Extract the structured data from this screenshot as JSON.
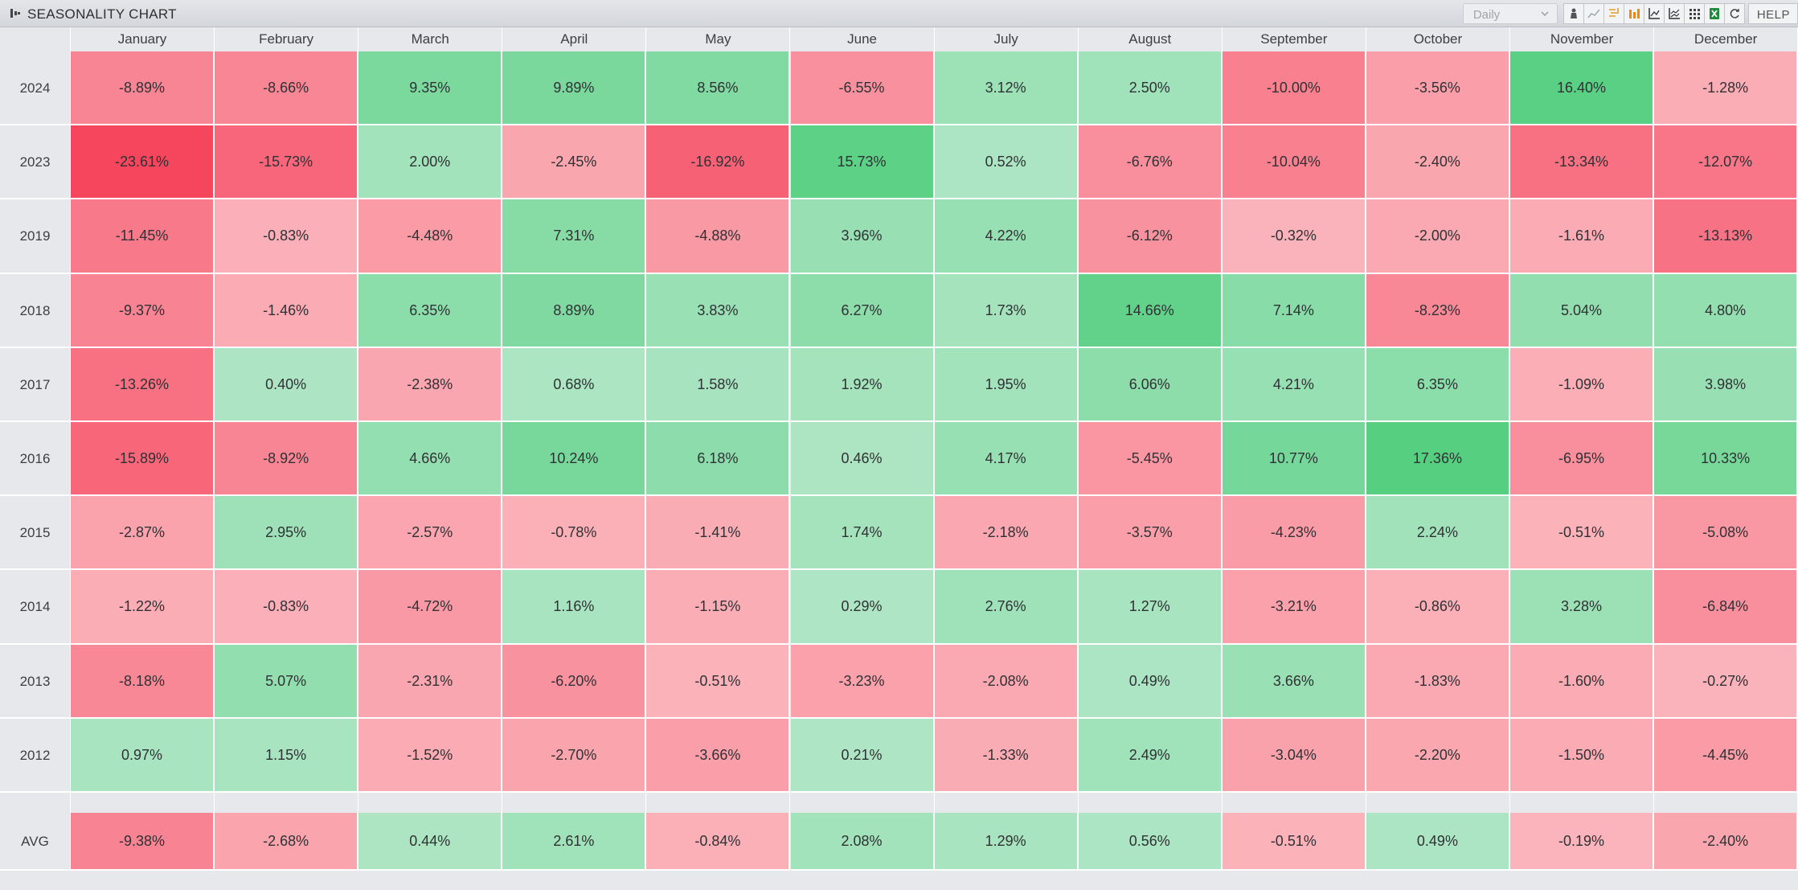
{
  "header": {
    "title": "SEASONALITY CHART",
    "timeframe_value": "Daily",
    "help_label": "HELP",
    "toolbar_icons": [
      "person-chart-icon",
      "line-chart-icon",
      "annotation-icon",
      "bar-chart-icon",
      "axis-chart-icon",
      "multi-line-chart-icon",
      "grid-icon",
      "excel-icon",
      "refresh-icon"
    ]
  },
  "colors": {
    "neg_light": "#fbb6bd",
    "neg_dark": "#f5445d",
    "pos_light": "#b0e6c6",
    "pos_dark": "#55cf80",
    "header_bg": "#e6e8ec"
  },
  "chart_data": {
    "type": "heatmap",
    "title": "SEASONALITY CHART",
    "unit": "%",
    "columns": [
      "January",
      "February",
      "March",
      "April",
      "May",
      "June",
      "July",
      "August",
      "September",
      "October",
      "November",
      "December"
    ],
    "rows": [
      {
        "label": "2024",
        "values": [
          -8.89,
          -8.66,
          9.35,
          9.89,
          8.56,
          -6.55,
          3.12,
          2.5,
          -10.0,
          -3.56,
          16.4,
          -1.28
        ]
      },
      {
        "label": "2023",
        "values": [
          -23.61,
          -15.73,
          2.0,
          -2.45,
          -16.92,
          15.73,
          0.52,
          -6.76,
          -10.04,
          -2.4,
          -13.34,
          -12.07
        ]
      },
      {
        "label": "2019",
        "values": [
          -11.45,
          -0.83,
          -4.48,
          7.31,
          -4.88,
          3.96,
          4.22,
          -6.12,
          -0.32,
          -2.0,
          -1.61,
          -13.13
        ]
      },
      {
        "label": "2018",
        "values": [
          -9.37,
          -1.46,
          6.35,
          8.89,
          3.83,
          6.27,
          1.73,
          14.66,
          7.14,
          -8.23,
          5.04,
          4.8
        ]
      },
      {
        "label": "2017",
        "values": [
          -13.26,
          0.4,
          -2.38,
          0.68,
          1.58,
          1.92,
          1.95,
          6.06,
          4.21,
          6.35,
          -1.09,
          3.98
        ]
      },
      {
        "label": "2016",
        "values": [
          -15.89,
          -8.92,
          4.66,
          10.24,
          6.18,
          0.46,
          4.17,
          -5.45,
          10.77,
          17.36,
          -6.95,
          10.33
        ]
      },
      {
        "label": "2015",
        "values": [
          -2.87,
          2.95,
          -2.57,
          -0.78,
          -1.41,
          1.74,
          -2.18,
          -3.57,
          -4.23,
          2.24,
          -0.51,
          -5.08
        ]
      },
      {
        "label": "2014",
        "values": [
          -1.22,
          -0.83,
          -4.72,
          1.16,
          -1.15,
          0.29,
          2.76,
          1.27,
          -3.21,
          -0.86,
          3.28,
          -6.84
        ]
      },
      {
        "label": "2013",
        "values": [
          -8.18,
          5.07,
          -2.31,
          -6.2,
          -0.51,
          -3.23,
          -2.08,
          0.49,
          3.66,
          -1.83,
          -1.6,
          -0.27
        ]
      },
      {
        "label": "2012",
        "values": [
          0.97,
          1.15,
          -1.52,
          -2.7,
          -3.66,
          0.21,
          -1.33,
          2.49,
          -3.04,
          -2.2,
          -1.5,
          -4.45
        ]
      }
    ],
    "average": {
      "label": "AVG",
      "values": [
        -9.38,
        -2.68,
        0.44,
        2.61,
        -0.84,
        2.08,
        1.29,
        0.56,
        -0.51,
        0.49,
        -0.19,
        -2.4
      ]
    }
  }
}
